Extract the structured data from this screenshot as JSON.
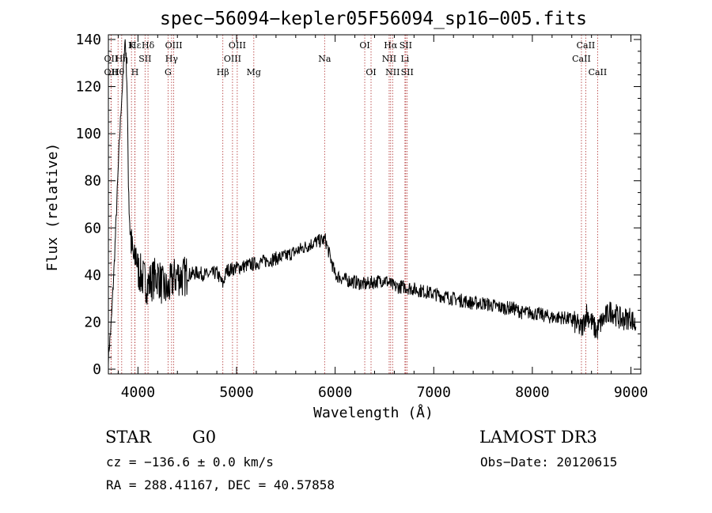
{
  "chart_data": {
    "type": "line",
    "title": "spec−56094−kepler05F56094_sp16−005.fits",
    "xlabel": "Wavelength (Å)",
    "ylabel": "Flux (relative)",
    "xlim": [
      3700,
      9100
    ],
    "ylim": [
      -2,
      142
    ],
    "xticks": [
      4000,
      5000,
      6000,
      7000,
      8000,
      9000
    ],
    "yticks": [
      0,
      20,
      40,
      60,
      80,
      100,
      120,
      140
    ],
    "series": [
      {
        "name": "flux",
        "x": [
          3700,
          3730,
          3760,
          3790,
          3810,
          3830,
          3850,
          3860,
          3870,
          3880,
          3890,
          3900,
          3910,
          3920,
          3935,
          3950,
          3965,
          3980,
          4000,
          4030,
          4060,
          4100,
          4150,
          4200,
          4250,
          4300,
          4350,
          4400,
          4450,
          4500,
          4600,
          4700,
          4800,
          4860,
          4900,
          5000,
          5100,
          5200,
          5300,
          5400,
          5500,
          5600,
          5700,
          5800,
          5900,
          6000,
          6100,
          6200,
          6300,
          6400,
          6500,
          6600,
          6700,
          6800,
          6900,
          7000,
          7100,
          7200,
          7300,
          7400,
          7500,
          7600,
          7700,
          7800,
          7900,
          8000,
          8100,
          8200,
          8300,
          8400,
          8500,
          8550,
          8600,
          8650,
          8700,
          8800,
          8900,
          9000,
          9050
        ],
        "y": [
          5,
          20,
          45,
          75,
          95,
          112,
          125,
          135,
          140,
          132,
          118,
          90,
          70,
          60,
          52,
          48,
          45,
          50,
          42,
          40,
          38,
          36,
          38,
          40,
          35,
          33,
          38,
          40,
          39,
          40,
          41,
          40,
          41,
          36,
          42,
          43,
          44,
          45,
          46,
          47,
          48,
          50,
          52,
          54,
          55,
          40,
          38,
          37,
          36,
          37,
          38,
          35,
          35,
          34,
          33,
          32,
          31,
          30,
          29,
          28,
          28,
          27,
          26,
          26,
          24,
          24,
          23,
          22,
          22,
          21,
          17,
          24,
          20,
          16,
          20,
          25,
          21,
          22,
          18
        ]
      }
    ],
    "lines": [
      {
        "label": "Hε",
        "x": 3970,
        "row": 1
      },
      {
        "label": "K",
        "x": 3934,
        "row": 1
      },
      {
        "label": "OII",
        "x": 3727,
        "row": 2
      },
      {
        "label": "Hη",
        "x": 3835,
        "row": 2
      },
      {
        "label": "SII",
        "x": 4072,
        "row": 2
      },
      {
        "label": "OII",
        "x": 3727,
        "row": 3
      },
      {
        "label": "Hθ",
        "x": 3798,
        "row": 3
      },
      {
        "label": "H",
        "x": 3969,
        "row": 3
      },
      {
        "label": "Hδ",
        "x": 4102,
        "row": 1
      },
      {
        "label": "OIII",
        "x": 4363,
        "row": 1
      },
      {
        "label": "Hγ",
        "x": 4341,
        "row": 2
      },
      {
        "label": "G",
        "x": 4305,
        "row": 3
      },
      {
        "label": "Hβ",
        "x": 4861,
        "row": 3
      },
      {
        "label": "OIII",
        "x": 5007,
        "row": 1
      },
      {
        "label": "OIII",
        "x": 4959,
        "row": 2
      },
      {
        "label": "Mg",
        "x": 5175,
        "row": 3
      },
      {
        "label": "Na",
        "x": 5893,
        "row": 2
      },
      {
        "label": "OI",
        "x": 6300,
        "row": 1
      },
      {
        "label": "OI",
        "x": 6364,
        "row": 3
      },
      {
        "label": "Hα",
        "x": 6563,
        "row": 1
      },
      {
        "label": "SII",
        "x": 6716,
        "row": 1
      },
      {
        "label": "NII",
        "x": 6548,
        "row": 2
      },
      {
        "label": "Li",
        "x": 6708,
        "row": 2
      },
      {
        "label": "NII",
        "x": 6583,
        "row": 3
      },
      {
        "label": "SII",
        "x": 6731,
        "row": 3
      },
      {
        "label": "CaII",
        "x": 8542,
        "row": 1
      },
      {
        "label": "CaII",
        "x": 8498,
        "row": 2
      },
      {
        "label": "CaII",
        "x": 8662,
        "row": 3
      }
    ]
  },
  "info": {
    "class_label": "STAR",
    "subclass": "G0",
    "survey": "LAMOST DR3",
    "cz": "cz = −136.6 ± 0.0 km/s",
    "obs_date": "Obs−Date: 20120615",
    "radec": "RA = 288.41167, DEC =  40.57858"
  }
}
